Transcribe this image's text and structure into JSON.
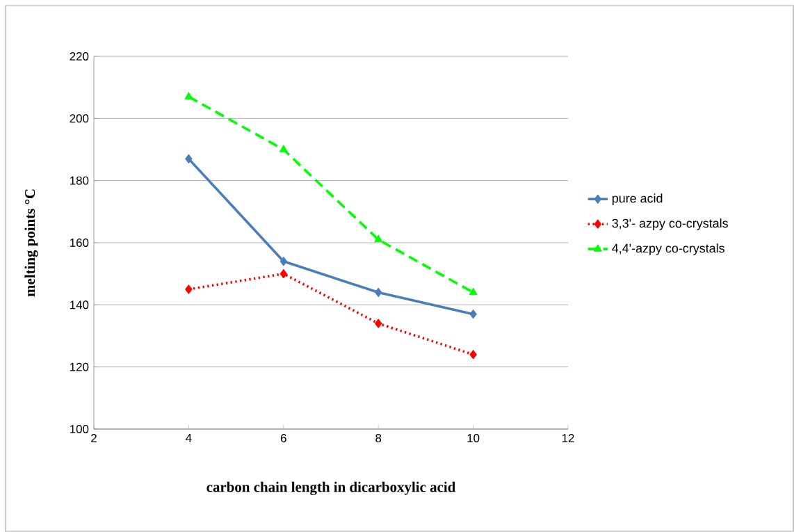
{
  "chart_data": {
    "type": "line",
    "xlabel": "carbon chain length in dicarboxylic acid",
    "ylabel": "melting points °C",
    "x": [
      4,
      6,
      8,
      10
    ],
    "xlim": [
      2,
      12
    ],
    "xticks": [
      2,
      4,
      6,
      8,
      10,
      12
    ],
    "ylim": [
      100,
      220
    ],
    "yticks": [
      100,
      120,
      140,
      160,
      180,
      200,
      220
    ],
    "grid": "y",
    "legend": "right",
    "series": [
      {
        "name": "pure acid",
        "color": "#4a7ebb",
        "values": [
          187,
          154,
          144,
          137
        ],
        "marker": "diamond",
        "line_style": "solid"
      },
      {
        "name": "3,3'- azpy co-crystals",
        "color": "#ff0000",
        "values": [
          145,
          150,
          134,
          124
        ],
        "marker": "diamond",
        "line_style": "dotted"
      },
      {
        "name": "4,4'-azpy co-crystals",
        "color": "#00ff00",
        "values": [
          207,
          190,
          161,
          144
        ],
        "marker": "triangle",
        "line_style": "dashed"
      }
    ]
  }
}
